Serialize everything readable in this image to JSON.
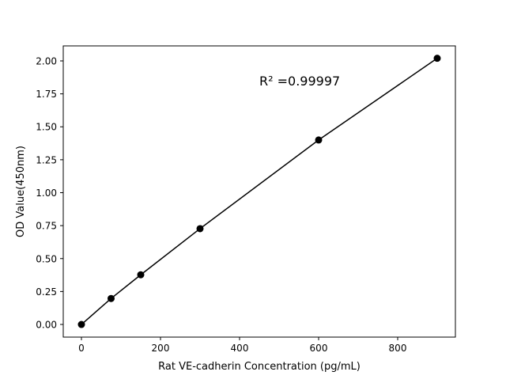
{
  "chart_data": {
    "type": "line",
    "title": "",
    "xlabel": "Rat VE-cadherin Concentration (pg/mL)",
    "ylabel": "OD Value(450nm)",
    "annotation": "R² =0.99997",
    "x": [
      0,
      75,
      150,
      300,
      600,
      900
    ],
    "y": [
      0.0,
      0.197,
      0.377,
      0.727,
      1.4,
      2.02
    ],
    "xlim": [
      -46,
      946
    ],
    "ylim": [
      -0.096,
      2.114
    ],
    "xticks": [
      0,
      200,
      400,
      600,
      800
    ],
    "xtick_labels": [
      "0",
      "200",
      "400",
      "600",
      "800"
    ],
    "yticks": [
      0,
      0.25,
      0.5,
      0.75,
      1.0,
      1.25,
      1.5,
      1.75,
      2.0
    ],
    "ytick_labels": [
      "0.00",
      "0.25",
      "0.50",
      "0.75",
      "1.00",
      "1.25",
      "1.50",
      "1.75",
      "2.00"
    ],
    "grid": false,
    "marker": "circle",
    "color": "#000000"
  }
}
